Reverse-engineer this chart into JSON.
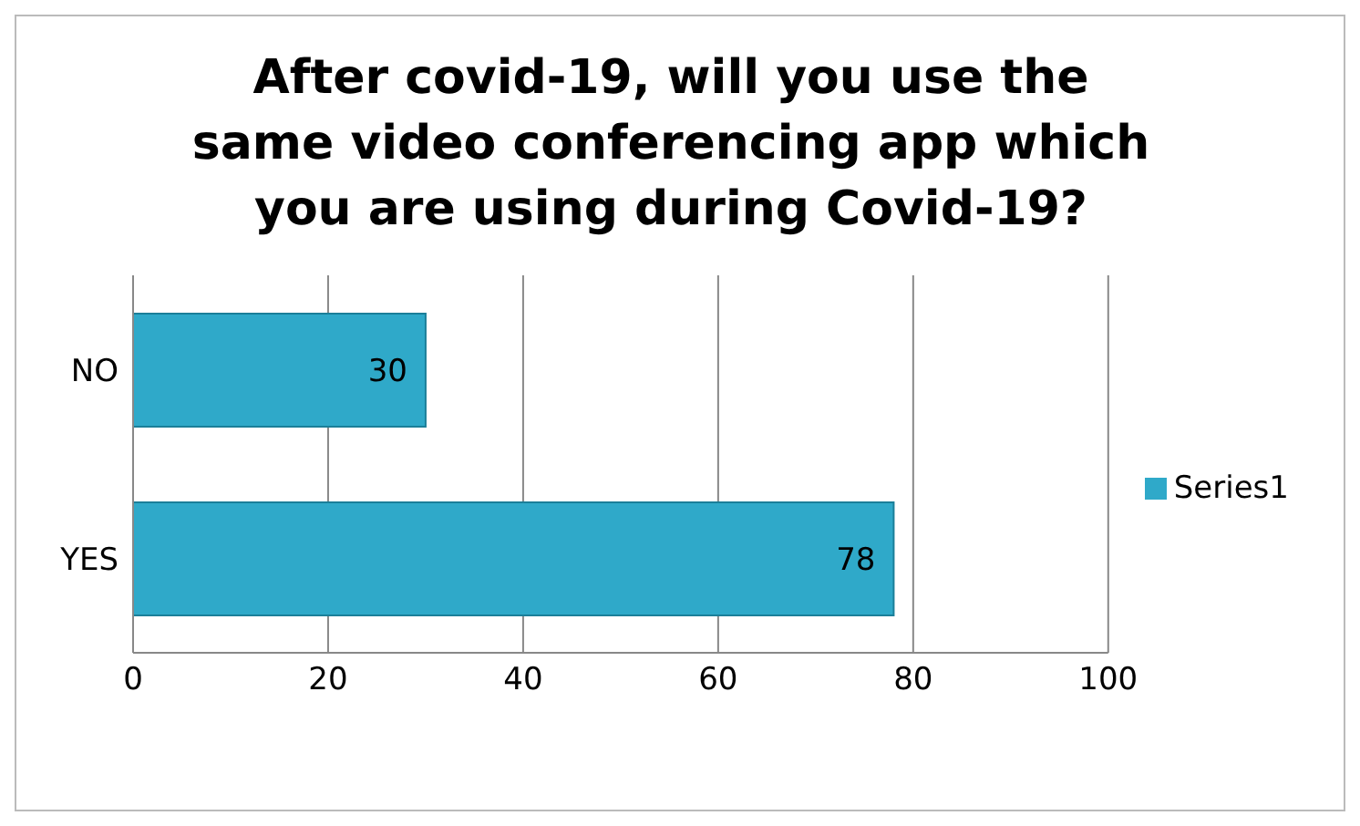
{
  "chart_data": {
    "type": "bar",
    "orientation": "horizontal",
    "title": "After covid-19, will you use the same video conferencing app which you are using during Covid-19?",
    "categories": [
      "NO",
      "YES"
    ],
    "series": [
      {
        "name": "Series1",
        "color": "#2fa9c9",
        "values": [
          30,
          78
        ]
      }
    ],
    "xlim": [
      0,
      100
    ],
    "xticks": [
      0,
      20,
      40,
      60,
      80,
      100
    ],
    "grid": "x",
    "legend": "right",
    "data_labels": true
  }
}
